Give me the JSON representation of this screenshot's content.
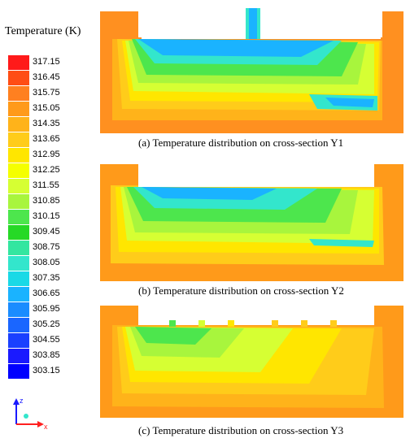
{
  "legend": {
    "title": "Temperature (K)",
    "entries": [
      {
        "label": "317.15",
        "color": "#ff1a1a"
      },
      {
        "label": "316.45",
        "color": "#ff4d14"
      },
      {
        "label": "315.75",
        "color": "#ff8020"
      },
      {
        "label": "315.05",
        "color": "#ff9a1a"
      },
      {
        "label": "314.35",
        "color": "#ffb31a"
      },
      {
        "label": "313.65",
        "color": "#ffcc1a"
      },
      {
        "label": "312.95",
        "color": "#ffe600"
      },
      {
        "label": "312.25",
        "color": "#f5ff00"
      },
      {
        "label": "311.55",
        "color": "#d6ff33"
      },
      {
        "label": "310.85",
        "color": "#a8f53d"
      },
      {
        "label": "310.15",
        "color": "#4de64d"
      },
      {
        "label": "309.45",
        "color": "#26d926"
      },
      {
        "label": "308.75",
        "color": "#33e6a0"
      },
      {
        "label": "308.05",
        "color": "#33e6cc"
      },
      {
        "label": "307.35",
        "color": "#1ad9e6"
      },
      {
        "label": "306.65",
        "color": "#1ab3ff"
      },
      {
        "label": "305.95",
        "color": "#1a8cff"
      },
      {
        "label": "305.25",
        "color": "#1a66ff"
      },
      {
        "label": "304.55",
        "color": "#1a40ff"
      },
      {
        "label": "303.85",
        "color": "#1a1aff"
      },
      {
        "label": "303.15",
        "color": "#0000ff"
      }
    ]
  },
  "panels": [
    {
      "caption": "(a) Temperature distribution on cross-section Y1"
    },
    {
      "caption": "(b) Temperature distribution on cross-section Y2"
    },
    {
      "caption": "(c) Temperature distribution on cross-section Y3"
    }
  ],
  "axes": {
    "z_label": "z",
    "x_label": "x"
  }
}
